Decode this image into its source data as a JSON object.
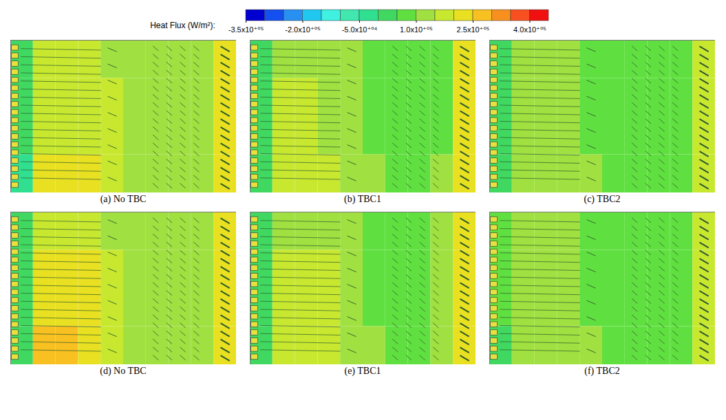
{
  "chart_data": {
    "type": "contour",
    "colorbar": {
      "title": "Heat Flux (W/m²):",
      "range": [
        -350000,
        450000
      ],
      "ticks": [
        {
          "value": -350000,
          "label": "-3.5x10⁺⁰⁵"
        },
        {
          "value": -200000,
          "label": "-2.0x10⁺⁰⁵"
        },
        {
          "value": -50000,
          "label": "-5.0x10⁺⁰⁴"
        },
        {
          "value": 100000,
          "label": "1.0x10⁺⁰⁵"
        },
        {
          "value": 250000,
          "label": "2.5x10⁺⁰⁵"
        },
        {
          "value": 400000,
          "label": "4.0x10⁺⁰⁵"
        }
      ],
      "colors": [
        "#0000d0",
        "#1450f0",
        "#2890f0",
        "#20c8f0",
        "#40f0e0",
        "#40e8b0",
        "#30e090",
        "#40d860",
        "#60e040",
        "#a0e040",
        "#c8e830",
        "#e8e020",
        "#f8c020",
        "#f89020",
        "#f85020",
        "#f01010"
      ]
    },
    "panels": [
      {
        "caption": "(a) No TBC",
        "cells": [
          [
            30000,
            160000,
            170000,
            160000,
            140000,
            110000,
            100000,
            100000,
            110000,
            230000
          ],
          [
            20000,
            190000,
            190000,
            180000,
            150000,
            110000,
            100000,
            100000,
            110000,
            240000
          ],
          [
            20000,
            190000,
            190000,
            180000,
            150000,
            110000,
            100000,
            100000,
            110000,
            240000
          ],
          [
            -20000,
            230000,
            240000,
            210000,
            160000,
            120000,
            110000,
            110000,
            120000,
            230000
          ]
        ]
      },
      {
        "caption": "(b) TBC1",
        "cells": [
          [
            40000,
            130000,
            130000,
            120000,
            110000,
            90000,
            80000,
            80000,
            90000,
            200000
          ],
          [
            40000,
            150000,
            150000,
            140000,
            120000,
            90000,
            80000,
            80000,
            90000,
            210000
          ],
          [
            40000,
            150000,
            150000,
            140000,
            120000,
            90000,
            80000,
            80000,
            90000,
            210000
          ],
          [
            0,
            170000,
            170000,
            150000,
            120000,
            100000,
            90000,
            90000,
            100000,
            200000
          ]
        ]
      },
      {
        "caption": "(c) TBC2",
        "cells": [
          [
            40000,
            110000,
            110000,
            100000,
            90000,
            70000,
            60000,
            60000,
            80000,
            190000
          ],
          [
            40000,
            120000,
            120000,
            110000,
            90000,
            70000,
            60000,
            60000,
            80000,
            190000
          ],
          [
            40000,
            120000,
            120000,
            110000,
            90000,
            70000,
            60000,
            60000,
            80000,
            190000
          ],
          [
            0,
            140000,
            140000,
            120000,
            100000,
            80000,
            70000,
            70000,
            80000,
            180000
          ]
        ]
      },
      {
        "caption": "(d) No TBC",
        "cells": [
          [
            40000,
            180000,
            190000,
            170000,
            140000,
            110000,
            100000,
            100000,
            120000,
            220000
          ],
          [
            30000,
            220000,
            230000,
            210000,
            160000,
            120000,
            100000,
            100000,
            120000,
            230000
          ],
          [
            30000,
            220000,
            230000,
            210000,
            160000,
            120000,
            100000,
            100000,
            120000,
            230000
          ],
          [
            0,
            250000,
            260000,
            230000,
            170000,
            130000,
            110000,
            110000,
            120000,
            220000
          ]
        ]
      },
      {
        "caption": "(e) TBC1",
        "cells": [
          [
            40000,
            140000,
            140000,
            130000,
            110000,
            90000,
            80000,
            80000,
            100000,
            210000
          ],
          [
            40000,
            160000,
            160000,
            150000,
            120000,
            90000,
            80000,
            80000,
            100000,
            210000
          ],
          [
            40000,
            160000,
            160000,
            150000,
            120000,
            90000,
            80000,
            80000,
            100000,
            210000
          ],
          [
            20000,
            170000,
            170000,
            150000,
            120000,
            100000,
            90000,
            90000,
            100000,
            200000
          ]
        ]
      },
      {
        "caption": "(f) TBC2",
        "cells": [
          [
            50000,
            110000,
            110000,
            100000,
            90000,
            70000,
            60000,
            60000,
            80000,
            190000
          ],
          [
            50000,
            120000,
            120000,
            110000,
            90000,
            70000,
            60000,
            60000,
            80000,
            190000
          ],
          [
            50000,
            120000,
            120000,
            110000,
            90000,
            70000,
            60000,
            60000,
            80000,
            190000
          ],
          [
            30000,
            130000,
            130000,
            120000,
            100000,
            80000,
            70000,
            70000,
            80000,
            180000
          ]
        ]
      }
    ]
  }
}
